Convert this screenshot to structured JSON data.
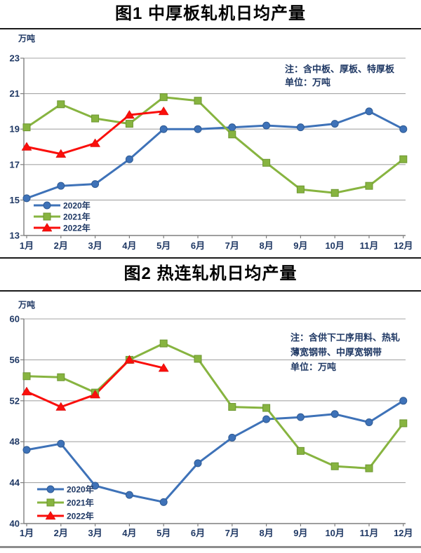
{
  "colors": {
    "series_2020": "#3E72B8",
    "series_2021": "#87B440",
    "series_2022": "#FA0F0C",
    "axis_text": "#1F3864",
    "note_text": "#1F3864",
    "grid": "#A6A6A6",
    "axis": "#7F7F7F",
    "title_text": "#000000",
    "divider": "#1A1A1A",
    "bottom_rule": "#8C8C8C"
  },
  "chart_data": [
    {
      "type": "line",
      "title": "图1 中厚板轧机日均产量",
      "unit_label": "万吨",
      "note_lines": [
        "注：含中板、厚板、特厚板",
        "单位：万吨"
      ],
      "categories": [
        "1月",
        "2月",
        "3月",
        "4月",
        "5月",
        "6月",
        "7月",
        "8月",
        "9月",
        "10月",
        "11月",
        "12月"
      ],
      "ylim": [
        13,
        23
      ],
      "yticks": [
        13,
        15,
        17,
        19,
        21,
        23
      ],
      "grid": true,
      "legend_position": "inside-bottom-left",
      "series": [
        {
          "name": "2020年",
          "marker": "circle",
          "color": "#3E72B8",
          "edge": "#2F5B94",
          "values": [
            15.1,
            15.8,
            15.9,
            17.3,
            19.0,
            19.0,
            19.1,
            19.2,
            19.1,
            19.3,
            20.0,
            19.0
          ]
        },
        {
          "name": "2021年",
          "marker": "square",
          "color": "#87B440",
          "edge": "#6C9630",
          "values": [
            19.1,
            20.4,
            19.6,
            19.3,
            20.8,
            20.6,
            18.7,
            17.1,
            15.6,
            15.4,
            15.8,
            17.3
          ]
        },
        {
          "name": "2022年",
          "marker": "triangle",
          "color": "#FA0F0C",
          "edge": "#D00000",
          "values": [
            18.0,
            17.6,
            18.2,
            19.8,
            20.0,
            null,
            null,
            null,
            null,
            null,
            null,
            null
          ]
        }
      ]
    },
    {
      "type": "line",
      "title": "图2 热连轧机日均产量",
      "unit_label": "万吨",
      "note_lines": [
        "注：含供下工序用料、热轧",
        "薄宽钢带、中厚宽钢带",
        "单位：万吨"
      ],
      "categories": [
        "1月",
        "2月",
        "3月",
        "4月",
        "5月",
        "6月",
        "7月",
        "8月",
        "9月",
        "10月",
        "11月",
        "12月"
      ],
      "ylim": [
        40,
        60
      ],
      "yticks": [
        40,
        44,
        48,
        52,
        56,
        60
      ],
      "grid": true,
      "legend_position": "inside-bottom-left",
      "series": [
        {
          "name": "2020年",
          "marker": "circle",
          "color": "#3E72B8",
          "edge": "#2F5B94",
          "values": [
            47.2,
            47.8,
            43.7,
            42.8,
            42.1,
            45.9,
            48.4,
            50.2,
            50.4,
            50.7,
            49.9,
            52.0
          ]
        },
        {
          "name": "2021年",
          "marker": "square",
          "color": "#87B440",
          "edge": "#6C9630",
          "values": [
            54.4,
            54.3,
            52.8,
            56.0,
            57.6,
            56.1,
            51.4,
            51.3,
            47.1,
            45.6,
            45.4,
            49.8
          ]
        },
        {
          "name": "2022年",
          "marker": "triangle",
          "color": "#FA0F0C",
          "edge": "#D00000",
          "values": [
            52.9,
            51.4,
            52.6,
            56.0,
            55.2,
            null,
            null,
            null,
            null,
            null,
            null,
            null
          ]
        }
      ]
    }
  ]
}
